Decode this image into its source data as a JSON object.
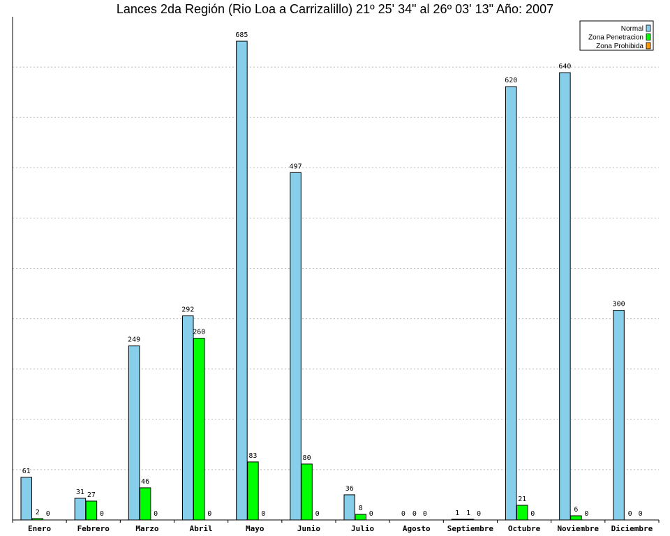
{
  "chart_data": {
    "type": "bar",
    "title": "Lances 2da Región (Rio Loa a Carrizalillo) 21º 25' 34\" al 26º 03' 13\" Año: 2007",
    "categories": [
      "Enero",
      "Febrero",
      "Marzo",
      "Abril",
      "Mayo",
      "Junio",
      "Julio",
      "Agosto",
      "Septiembre",
      "Octubre",
      "Noviembre",
      "Diciembre"
    ],
    "series": [
      {
        "name": "Normal",
        "color": "#87ceeb",
        "values": [
          61,
          31,
          249,
          292,
          685,
          497,
          36,
          0,
          1,
          620,
          640,
          300
        ]
      },
      {
        "name": "Zona Penetracion",
        "color": "#00ff00",
        "values": [
          2,
          27,
          46,
          260,
          83,
          80,
          8,
          0,
          1,
          21,
          6,
          0
        ]
      },
      {
        "name": "Zona Prohibida",
        "color": "#ff9900",
        "values": [
          0,
          0,
          0,
          0,
          0,
          0,
          0,
          0,
          0,
          0,
          0,
          0
        ]
      }
    ],
    "ylim": [
      0,
      720
    ],
    "grid": true,
    "legend_position": "top-right",
    "xlabel": "",
    "ylabel": ""
  }
}
